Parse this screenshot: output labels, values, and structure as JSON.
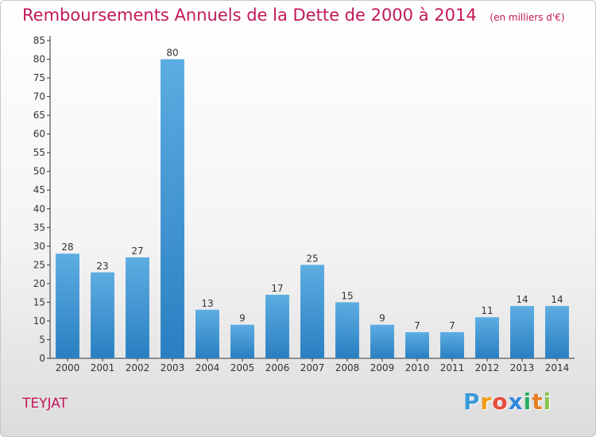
{
  "chart_data": {
    "type": "bar",
    "title": "Remboursements Annuels de la Dette de 2000 à 2014",
    "unit_note": "(en milliers d'€)",
    "categories": [
      "2000",
      "2001",
      "2002",
      "2003",
      "2004",
      "2005",
      "2006",
      "2007",
      "2008",
      "2009",
      "2010",
      "2011",
      "2012",
      "2013",
      "2014"
    ],
    "values": [
      28,
      23,
      27,
      80,
      13,
      9,
      17,
      25,
      15,
      9,
      7,
      7,
      11,
      14,
      14
    ],
    "ylim": [
      0,
      85
    ],
    "yticks": [
      0,
      5,
      10,
      15,
      20,
      25,
      30,
      35,
      40,
      45,
      50,
      55,
      60,
      65,
      70,
      75,
      80,
      85
    ],
    "grid": false,
    "legend": "none",
    "bar_color_light": "#5dade2",
    "bar_color_dark": "#2a7fc1"
  },
  "commune": "TEYJAT",
  "logo": {
    "letters": [
      "P",
      "r",
      "o",
      "x",
      "i",
      "t",
      "i"
    ],
    "colors": [
      "#3a9ad9",
      "#f39c12",
      "#e74c3c",
      "#2e86de",
      "#27ae60",
      "#e67e22",
      "#8bc34a"
    ]
  },
  "colors": {
    "accent": "#c2185b"
  }
}
